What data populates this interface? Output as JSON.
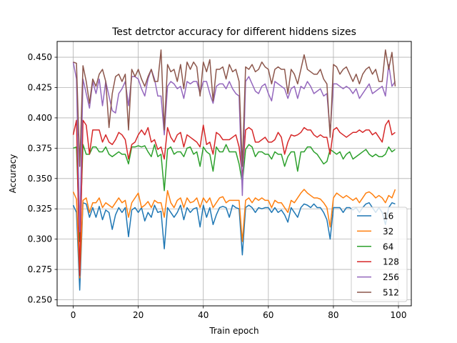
{
  "chart_data": {
    "type": "line",
    "title": "Test detrctor accuracy for different hiddens sizes",
    "xlabel": "Train epoch",
    "ylabel": "Accuracy",
    "xlim": [
      -4.95,
      103.95
    ],
    "ylim": [
      0.245,
      0.463
    ],
    "xticks": [
      0,
      20,
      40,
      60,
      80,
      100
    ],
    "yticks": [
      0.25,
      0.275,
      0.3,
      0.325,
      0.35,
      0.375,
      0.4,
      0.425,
      0.45
    ],
    "ytick_labels": [
      "0.250",
      "0.275",
      "0.300",
      "0.325",
      "0.350",
      "0.375",
      "0.400",
      "0.425",
      "0.450"
    ],
    "grid": true,
    "legend_position": "lower-right",
    "x": [
      0,
      1,
      2,
      3,
      4,
      5,
      6,
      7,
      8,
      9,
      10,
      11,
      12,
      13,
      14,
      15,
      16,
      17,
      18,
      19,
      20,
      21,
      22,
      23,
      24,
      25,
      26,
      27,
      28,
      29,
      30,
      31,
      32,
      33,
      34,
      35,
      36,
      37,
      38,
      39,
      40,
      41,
      42,
      43,
      44,
      45,
      46,
      47,
      48,
      49,
      50,
      51,
      52,
      53,
      54,
      55,
      56,
      57,
      58,
      59,
      60,
      61,
      62,
      63,
      64,
      65,
      66,
      67,
      68,
      69,
      70,
      71,
      72,
      73,
      74,
      75,
      76,
      77,
      78,
      79,
      80,
      81,
      82,
      83,
      84,
      85,
      86,
      87,
      88,
      89,
      90,
      91,
      92,
      93,
      94,
      95,
      96,
      97,
      98,
      99
    ],
    "series": [
      {
        "name": "16",
        "color": "#1f77b4",
        "values": [
          0.328,
          0.322,
          0.258,
          0.33,
          0.329,
          0.318,
          0.326,
          0.318,
          0.327,
          0.316,
          0.324,
          0.322,
          0.308,
          0.32,
          0.326,
          0.322,
          0.326,
          0.302,
          0.324,
          0.326,
          0.322,
          0.326,
          0.315,
          0.322,
          0.318,
          0.328,
          0.322,
          0.323,
          0.292,
          0.326,
          0.322,
          0.318,
          0.322,
          0.328,
          0.316,
          0.326,
          0.322,
          0.325,
          0.326,
          0.31,
          0.328,
          0.318,
          0.326,
          0.312,
          0.32,
          0.326,
          0.327,
          0.326,
          0.318,
          0.328,
          0.326,
          0.325,
          0.287,
          0.326,
          0.328,
          0.326,
          0.322,
          0.326,
          0.325,
          0.326,
          0.326,
          0.322,
          0.326,
          0.322,
          0.324,
          0.32,
          0.314,
          0.326,
          0.322,
          0.318,
          0.326,
          0.329,
          0.328,
          0.326,
          0.329,
          0.326,
          0.326,
          0.322,
          0.316,
          0.3,
          0.326,
          0.326,
          0.326,
          0.322,
          0.326,
          0.326,
          0.324,
          0.326,
          0.322,
          0.326,
          0.329,
          0.33,
          0.326,
          0.322,
          0.326,
          0.322,
          0.312,
          0.326,
          0.33,
          0.329
        ]
      },
      {
        "name": "32",
        "color": "#ff7f0e",
        "values": [
          0.339,
          0.333,
          0.268,
          0.332,
          0.334,
          0.322,
          0.33,
          0.33,
          0.334,
          0.326,
          0.33,
          0.328,
          0.326,
          0.33,
          0.334,
          0.33,
          0.332,
          0.318,
          0.33,
          0.334,
          0.338,
          0.326,
          0.328,
          0.331,
          0.326,
          0.332,
          0.33,
          0.33,
          0.318,
          0.34,
          0.33,
          0.326,
          0.332,
          0.334,
          0.326,
          0.334,
          0.33,
          0.331,
          0.334,
          0.326,
          0.334,
          0.33,
          0.334,
          0.326,
          0.33,
          0.334,
          0.335,
          0.33,
          0.332,
          0.332,
          0.332,
          0.332,
          0.298,
          0.332,
          0.334,
          0.33,
          0.334,
          0.332,
          0.334,
          0.332,
          0.332,
          0.326,
          0.332,
          0.33,
          0.33,
          0.326,
          0.322,
          0.332,
          0.33,
          0.334,
          0.338,
          0.341,
          0.338,
          0.336,
          0.334,
          0.334,
          0.333,
          0.33,
          0.326,
          0.31,
          0.334,
          0.338,
          0.336,
          0.334,
          0.336,
          0.334,
          0.332,
          0.334,
          0.33,
          0.334,
          0.338,
          0.339,
          0.337,
          0.334,
          0.336,
          0.334,
          0.33,
          0.336,
          0.334,
          0.341
        ]
      },
      {
        "name": "64",
        "color": "#2ca02c",
        "values": [
          0.375,
          0.376,
          0.298,
          0.378,
          0.37,
          0.37,
          0.376,
          0.376,
          0.372,
          0.372,
          0.376,
          0.37,
          0.368,
          0.37,
          0.372,
          0.37,
          0.37,
          0.362,
          0.376,
          0.376,
          0.377,
          0.376,
          0.377,
          0.372,
          0.368,
          0.378,
          0.368,
          0.37,
          0.34,
          0.374,
          0.376,
          0.37,
          0.372,
          0.372,
          0.368,
          0.375,
          0.376,
          0.37,
          0.372,
          0.36,
          0.376,
          0.372,
          0.37,
          0.356,
          0.376,
          0.372,
          0.372,
          0.378,
          0.372,
          0.372,
          0.372,
          0.362,
          0.346,
          0.374,
          0.378,
          0.376,
          0.368,
          0.372,
          0.372,
          0.37,
          0.37,
          0.366,
          0.372,
          0.37,
          0.37,
          0.36,
          0.368,
          0.372,
          0.372,
          0.356,
          0.372,
          0.372,
          0.376,
          0.376,
          0.372,
          0.37,
          0.366,
          0.362,
          0.364,
          0.374,
          0.372,
          0.37,
          0.372,
          0.366,
          0.37,
          0.372,
          0.366,
          0.368,
          0.37,
          0.372,
          0.374,
          0.37,
          0.368,
          0.37,
          0.368,
          0.368,
          0.37,
          0.376,
          0.372,
          0.374
        ]
      },
      {
        "name": "128",
        "color": "#d62728",
        "values": [
          0.386,
          0.398,
          0.27,
          0.398,
          0.394,
          0.37,
          0.39,
          0.39,
          0.39,
          0.38,
          0.386,
          0.38,
          0.378,
          0.382,
          0.388,
          0.386,
          0.382,
          0.366,
          0.378,
          0.38,
          0.386,
          0.39,
          0.386,
          0.392,
          0.38,
          0.382,
          0.374,
          0.376,
          0.366,
          0.392,
          0.384,
          0.38,
          0.386,
          0.388,
          0.376,
          0.386,
          0.384,
          0.382,
          0.38,
          0.376,
          0.394,
          0.378,
          0.38,
          0.37,
          0.388,
          0.386,
          0.382,
          0.382,
          0.382,
          0.384,
          0.386,
          0.376,
          0.352,
          0.39,
          0.392,
          0.39,
          0.38,
          0.38,
          0.382,
          0.384,
          0.38,
          0.38,
          0.382,
          0.388,
          0.384,
          0.37,
          0.38,
          0.386,
          0.385,
          0.386,
          0.388,
          0.392,
          0.39,
          0.39,
          0.386,
          0.384,
          0.386,
          0.384,
          0.384,
          0.37,
          0.39,
          0.392,
          0.388,
          0.386,
          0.384,
          0.386,
          0.388,
          0.388,
          0.39,
          0.388,
          0.39,
          0.39,
          0.386,
          0.388,
          0.384,
          0.38,
          0.394,
          0.398,
          0.386,
          0.388
        ]
      },
      {
        "name": "256",
        "color": "#9467bd",
        "values": [
          0.446,
          0.432,
          0.306,
          0.432,
          0.42,
          0.408,
          0.43,
          0.42,
          0.432,
          0.41,
          0.43,
          0.418,
          0.406,
          0.404,
          0.42,
          0.424,
          0.43,
          0.41,
          0.434,
          0.434,
          0.432,
          0.424,
          0.418,
          0.432,
          0.44,
          0.432,
          0.418,
          0.418,
          0.386,
          0.426,
          0.43,
          0.428,
          0.424,
          0.426,
          0.416,
          0.43,
          0.428,
          0.43,
          0.43,
          0.42,
          0.43,
          0.43,
          0.42,
          0.412,
          0.426,
          0.428,
          0.428,
          0.424,
          0.43,
          0.424,
          0.42,
          0.418,
          0.336,
          0.43,
          0.434,
          0.428,
          0.422,
          0.42,
          0.426,
          0.428,
          0.42,
          0.414,
          0.43,
          0.428,
          0.426,
          0.424,
          0.416,
          0.424,
          0.426,
          0.416,
          0.426,
          0.424,
          0.43,
          0.426,
          0.42,
          0.422,
          0.424,
          0.418,
          0.42,
          0.388,
          0.428,
          0.428,
          0.426,
          0.424,
          0.426,
          0.424,
          0.42,
          0.424,
          0.416,
          0.42,
          0.424,
          0.428,
          0.42,
          0.422,
          0.424,
          0.426,
          0.418,
          0.444,
          0.426,
          0.43
        ]
      },
      {
        "name": "512",
        "color": "#8c564b",
        "values": [
          0.446,
          0.445,
          0.36,
          0.443,
          0.43,
          0.412,
          0.432,
          0.426,
          0.436,
          0.44,
          0.43,
          0.392,
          0.42,
          0.434,
          0.436,
          0.43,
          0.436,
          0.39,
          0.44,
          0.434,
          0.44,
          0.432,
          0.426,
          0.434,
          0.44,
          0.43,
          0.43,
          0.456,
          0.39,
          0.444,
          0.438,
          0.44,
          0.43,
          0.444,
          0.424,
          0.446,
          0.44,
          0.446,
          0.442,
          0.418,
          0.446,
          0.438,
          0.448,
          0.414,
          0.44,
          0.44,
          0.442,
          0.432,
          0.444,
          0.438,
          0.44,
          0.43,
          0.36,
          0.442,
          0.44,
          0.444,
          0.438,
          0.44,
          0.446,
          0.442,
          0.44,
          0.428,
          0.44,
          0.442,
          0.44,
          0.44,
          0.42,
          0.44,
          0.436,
          0.428,
          0.44,
          0.452,
          0.44,
          0.438,
          0.436,
          0.436,
          0.44,
          0.432,
          0.428,
          0.384,
          0.444,
          0.442,
          0.436,
          0.44,
          0.442,
          0.436,
          0.43,
          0.436,
          0.428,
          0.436,
          0.44,
          0.442,
          0.436,
          0.44,
          0.43,
          0.43,
          0.456,
          0.44,
          0.454,
          0.426
        ]
      }
    ]
  }
}
